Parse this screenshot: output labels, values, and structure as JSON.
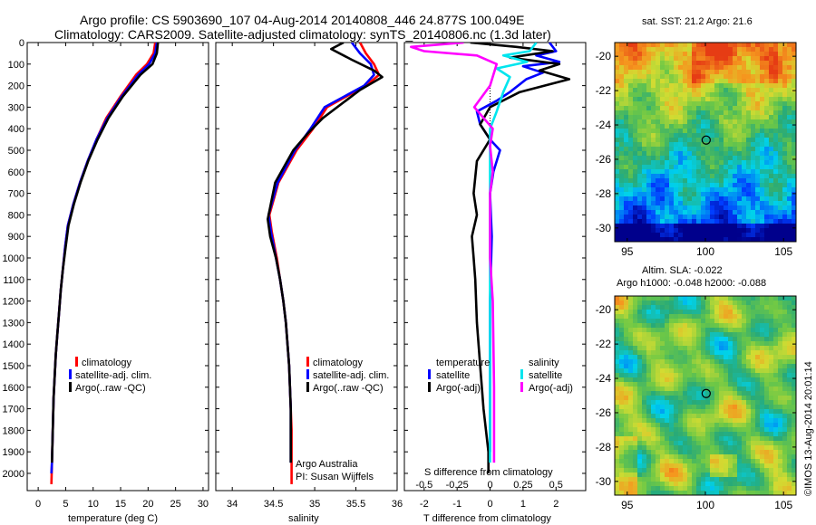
{
  "header": {
    "line1": "Argo profile: CS 5903690_107 04-Aug-2014 20140808_446 24.877S 100.049E",
    "line2": "Climatology: CARS2009. Satellite-adjusted climatology: synTS_20140806.nc (1.3d later)"
  },
  "colors": {
    "climatology": "#ff0000",
    "satellite": "#0000ff",
    "argo": "#000000",
    "satellite_s": "#00e5ee",
    "argo_s": "#ff00ff"
  },
  "chart_data": [
    {
      "type": "line",
      "id": "temperature",
      "xlabel": "temperature (deg C)",
      "ylabel": "",
      "xlim": [
        -2,
        31
      ],
      "ylim": [
        2080,
        0
      ],
      "xticks": [
        0,
        5,
        10,
        15,
        20,
        25,
        30
      ],
      "yticks": [
        0,
        100,
        200,
        300,
        400,
        500,
        600,
        700,
        800,
        900,
        1000,
        1100,
        1200,
        1300,
        1400,
        1500,
        1600,
        1700,
        1800,
        1900,
        2000
      ],
      "legend": [
        "climatology",
        "satellite-adj. clim.",
        "Argo(..raw -QC)"
      ],
      "series": [
        {
          "name": "climatology",
          "color": "#ff0000",
          "x": [
            21.3,
            21.0,
            19.8,
            17.8,
            15.0,
            12.4,
            10.6,
            9.0,
            7.6,
            6.4,
            5.4,
            4.9,
            4.5,
            4.1,
            3.8,
            3.5,
            3.2,
            3.0,
            2.8,
            2.7,
            2.5,
            2.4
          ],
          "y": [
            0,
            50,
            100,
            150,
            250,
            350,
            450,
            550,
            650,
            750,
            850,
            950,
            1050,
            1150,
            1250,
            1350,
            1450,
            1550,
            1650,
            1750,
            1950,
            2050
          ]
        },
        {
          "name": "satellite-adj. clim.",
          "color": "#0000ff",
          "x": [
            21.6,
            21.3,
            20.2,
            18.2,
            15.2,
            12.6,
            10.6,
            9.0,
            7.6,
            6.4,
            5.4,
            4.9,
            4.5,
            4.1,
            3.8,
            3.5,
            3.2,
            3.0,
            2.8,
            2.7,
            2.5,
            2.4
          ],
          "y": [
            0,
            50,
            100,
            150,
            250,
            350,
            450,
            550,
            650,
            750,
            850,
            950,
            1050,
            1150,
            1250,
            1350,
            1450,
            1550,
            1650,
            1750,
            1950,
            2000
          ]
        },
        {
          "name": "Argo(..raw -QC)",
          "color": "#000000",
          "x": [
            21.8,
            21.6,
            20.8,
            18.6,
            15.4,
            12.8,
            10.8,
            9.1,
            7.7,
            6.5,
            5.5,
            5.0,
            4.5,
            4.1,
            3.8,
            3.5,
            3.2,
            3.0,
            2.8,
            2.7,
            2.5
          ],
          "y": [
            0,
            50,
            100,
            150,
            250,
            350,
            450,
            550,
            650,
            750,
            850,
            950,
            1050,
            1150,
            1250,
            1350,
            1450,
            1550,
            1650,
            1750,
            1950
          ]
        }
      ]
    },
    {
      "type": "line",
      "id": "salinity",
      "xlabel": "salinity",
      "ylabel": "",
      "xlim": [
        33.8,
        36.0
      ],
      "ylim": [
        2080,
        0
      ],
      "xticks": [
        34,
        34.5,
        35,
        35.5,
        36
      ],
      "legend": [
        "climatology",
        "satellite-adj. clim.",
        "Argo(..raw -QC)"
      ],
      "annotation_line1": "Argo Australia",
      "annotation_line2": "PI: Susan Wijffels",
      "series": [
        {
          "name": "climatology",
          "color": "#ff0000",
          "x": [
            35.55,
            35.62,
            35.72,
            35.78,
            35.62,
            35.15,
            34.98,
            34.78,
            34.56,
            34.45,
            34.48,
            34.54,
            34.58,
            34.62,
            34.65,
            34.67,
            34.69,
            34.7,
            34.71,
            34.72,
            34.72,
            34.72
          ],
          "y": [
            0,
            50,
            100,
            150,
            200,
            300,
            400,
            500,
            650,
            800,
            880,
            1000,
            1100,
            1200,
            1300,
            1400,
            1500,
            1600,
            1700,
            1800,
            1900,
            2050
          ]
        },
        {
          "name": "satellite-adj. clim.",
          "color": "#0000ff",
          "x": [
            35.45,
            35.55,
            35.68,
            35.72,
            35.6,
            35.12,
            34.95,
            34.76,
            34.55,
            34.44,
            34.47,
            34.53,
            34.58,
            34.62,
            34.65,
            34.67,
            34.69,
            34.7,
            34.71,
            34.71,
            34.71
          ],
          "y": [
            0,
            50,
            100,
            150,
            200,
            300,
            400,
            500,
            650,
            800,
            880,
            1000,
            1100,
            1200,
            1300,
            1400,
            1500,
            1600,
            1700,
            1800,
            1950
          ]
        },
        {
          "name": "Argo(..raw -QC)",
          "color": "#000000",
          "x": [
            35.35,
            35.2,
            35.45,
            35.72,
            35.82,
            35.55,
            35.1,
            34.92,
            34.74,
            34.52,
            34.43,
            34.46,
            34.53,
            34.58,
            34.62,
            34.65,
            34.67,
            34.69,
            34.7,
            34.71,
            34.71
          ],
          "y": [
            0,
            30,
            80,
            130,
            160,
            220,
            350,
            420,
            500,
            650,
            820,
            900,
            1000,
            1100,
            1200,
            1300,
            1400,
            1500,
            1600,
            1700,
            1950
          ]
        }
      ]
    },
    {
      "type": "line",
      "id": "differences",
      "xlabel": "T difference from climatology",
      "xlabel_top": "S difference from climatology",
      "xlim": [
        -2.6,
        2.9
      ],
      "ylim": [
        2080,
        0
      ],
      "xticks_T": [
        -2,
        -1,
        0,
        1,
        2
      ],
      "xticks_S": [
        -0.5,
        -0.25,
        0,
        0.25,
        0.5
      ],
      "legend_titles": [
        "temperature",
        "salinity"
      ],
      "legend": [
        "satellite",
        "Argo(-adj)",
        "satellite",
        "Argo(-adj)"
      ],
      "series": [
        {
          "name": "satellite",
          "group": "temperature",
          "color": "#0000ff",
          "x": [
            1.8,
            2.0,
            1.4,
            2.1,
            1.0,
            1.6,
            1.1,
            0.6,
            0.2,
            -0.4,
            -0.3,
            0.0,
            0.3,
            0.1,
            0.0,
            0.05,
            0.0,
            0.0,
            0.0
          ],
          "y": [
            0,
            40,
            60,
            90,
            110,
            140,
            170,
            230,
            270,
            320,
            380,
            450,
            500,
            600,
            700,
            900,
            1200,
            1500,
            1900
          ]
        },
        {
          "name": "Argo(-adj)",
          "group": "temperature",
          "color": "#000000",
          "x": [
            -0.6,
            0.8,
            1.9,
            0.6,
            2.1,
            1.5,
            2.4,
            0.9,
            0.0,
            -0.3,
            0.0,
            -0.4,
            -0.5,
            -0.4,
            -0.55,
            -0.5,
            -0.45,
            -0.4,
            -0.3,
            -0.2,
            -0.05,
            -0.05
          ],
          "y": [
            0,
            20,
            40,
            70,
            100,
            130,
            170,
            230,
            300,
            380,
            450,
            550,
            700,
            800,
            900,
            1000,
            1100,
            1300,
            1500,
            1700,
            1900,
            2000
          ]
        },
        {
          "name": "satellite",
          "group": "salinity",
          "color": "#00e5ee",
          "x": [
            0.35,
            0.3,
            0.1,
            0.28,
            0.05,
            0.15,
            0.1,
            0.05,
            0.0,
            0.0,
            0.0,
            0.0,
            0.0,
            0.0
          ],
          "y": [
            0,
            40,
            60,
            90,
            120,
            160,
            230,
            320,
            400,
            600,
            800,
            1200,
            1600,
            1950
          ]
        },
        {
          "name": "Argo(-adj)",
          "group": "salinity",
          "color": "#ff00ff",
          "x": [
            -0.2,
            -0.6,
            -0.5,
            -0.1,
            0.05,
            0.0,
            -0.12,
            -0.05,
            0.02,
            0.0,
            0.02,
            0.0,
            0.0,
            0.0,
            0.02,
            0.03,
            0.03
          ],
          "y": [
            0,
            20,
            40,
            60,
            100,
            200,
            300,
            350,
            400,
            480,
            600,
            700,
            800,
            1000,
            1200,
            1600,
            1950
          ]
        }
      ]
    },
    {
      "type": "heatmap",
      "id": "sst",
      "title": "sat. SST: 21.2  Argo: 21.6",
      "xlim": [
        94.2,
        105.8
      ],
      "ylim": [
        -30.8,
        -19.2
      ],
      "xticks": [
        95,
        100,
        105
      ],
      "yticks": [
        -20,
        -22,
        -24,
        -26,
        -28,
        -30
      ],
      "marker": {
        "lon": 100.05,
        "lat": -24.88
      }
    },
    {
      "type": "heatmap",
      "id": "sla",
      "title_line1": "Altim. SLA: -0.022",
      "title_line2": "Argo h1000: -0.048 h2000: -0.088",
      "xlim": [
        94.2,
        105.8
      ],
      "ylim": [
        -30.8,
        -19.2
      ],
      "xticks": [
        95,
        100,
        105
      ],
      "yticks": [
        -20,
        -22,
        -24,
        -26,
        -28,
        -30
      ],
      "marker": {
        "lon": 100.05,
        "lat": -24.88
      },
      "side_label": "©IMOS 13-Aug-2014 20:01:14"
    }
  ]
}
